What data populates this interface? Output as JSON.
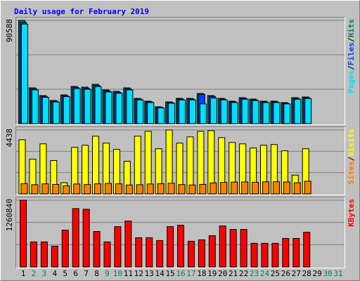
{
  "chart_data": {
    "type": "bar",
    "title": "Daily usage for February 2019",
    "legend_separator": "/",
    "categories": [
      "1",
      "2",
      "3",
      "4",
      "5",
      "6",
      "7",
      "8",
      "9",
      "10",
      "11",
      "12",
      "13",
      "14",
      "15",
      "16",
      "17",
      "18",
      "19",
      "20",
      "21",
      "22",
      "23",
      "24",
      "25",
      "26",
      "27",
      "28",
      "29",
      "30",
      "31"
    ],
    "label_colors": [
      "#000000",
      "#00805c",
      "#00805c",
      "#000000",
      "#000000",
      "#000000",
      "#000000",
      "#000000",
      "#00805c",
      "#00805c",
      "#000000",
      "#000000",
      "#000000",
      "#000000",
      "#000000",
      "#00805c",
      "#00805c",
      "#000000",
      "#000000",
      "#000000",
      "#000000",
      "#000000",
      "#00805c",
      "#00805c",
      "#000000",
      "#000000",
      "#000000",
      "#000000",
      "#000000",
      "#00805c",
      "#00805c"
    ],
    "panels": [
      {
        "ylim": [
          0,
          90588
        ],
        "yticks": [
          90588
        ],
        "series": [
          {
            "name": "Hits",
            "color": "#00805c",
            "values": [
              90588,
              31416,
              24640,
              20328,
              25256,
              32648,
              32032,
              34496,
              29568,
              28336,
              31416,
              22176,
              19712,
              14784,
              19096,
              22176,
              22176,
              26488,
              24640,
              22176,
              19712,
              22792,
              21560,
              19712,
              19712,
              18480,
              22792,
              23408,
              null,
              null,
              null
            ]
          },
          {
            "name": "Files",
            "color": "#0040ff",
            "values": [
              88900,
              30500,
              23900,
              19700,
              24500,
              31700,
              31100,
              33500,
              28700,
              27500,
              30500,
              21500,
              19100,
              14300,
              18500,
              21500,
              21500,
              25700,
              23900,
              21500,
              19100,
              22100,
              20900,
              19100,
              19100,
              17900,
              22100,
              22700,
              null,
              null,
              null
            ]
          },
          {
            "name": "Pages",
            "color": "#00e0ff",
            "values": [
              87300,
              29600,
              23100,
              19000,
              23700,
              30700,
              30100,
              32500,
              27800,
              26600,
              29600,
              20800,
              18500,
              13800,
              17900,
              20800,
              20800,
              17300,
              22400,
              20800,
              18500,
              21400,
              20200,
              18500,
              18500,
              17300,
              21400,
              22000,
              null,
              null,
              null
            ]
          }
        ]
      },
      {
        "ylim": [
          0,
          4438
        ],
        "yticks": [
          4438
        ],
        "series": [
          {
            "name": "Visits",
            "color": "#ffff00",
            "values": [
              3761,
              2412,
              3473,
              2316,
              772,
              3233,
              3377,
              4005,
              3522,
              3088,
              2268,
              4005,
              4342,
              3136,
              4438,
              3522,
              3956,
              4342,
              4390,
              3908,
              3570,
              3473,
              3184,
              3377,
              3425,
              2991,
              1303,
              3136,
              null,
              null,
              null
            ]
          },
          {
            "name": "Sites",
            "color": "#ff8000",
            "values": [
              720,
              640,
              700,
              660,
              560,
              690,
              650,
              700,
              730,
              700,
              620,
              640,
              690,
              710,
              740,
              650,
              620,
              660,
              760,
              800,
              820,
              830,
              810,
              840,
              850,
              830,
              770,
              880,
              null,
              null,
              null
            ]
          }
        ]
      },
      {
        "ylim": [
          0,
          1260840
        ],
        "yticks": [
          1260840
        ],
        "series": [
          {
            "name": "KBytes",
            "color": "#ff0000",
            "values": [
              1260840,
              472824,
              472824,
              394020,
              696102,
              1103256,
              1090122,
              669834,
              472824,
              761772,
              866844,
              551628,
              551628,
              499092,
              761772,
              788040,
              485958,
              512226,
              591030,
              774906,
              709236,
              709236,
              446556,
              446556,
              446556,
              538494,
              538494,
              656700,
              null,
              null,
              null
            ]
          }
        ]
      }
    ]
  }
}
